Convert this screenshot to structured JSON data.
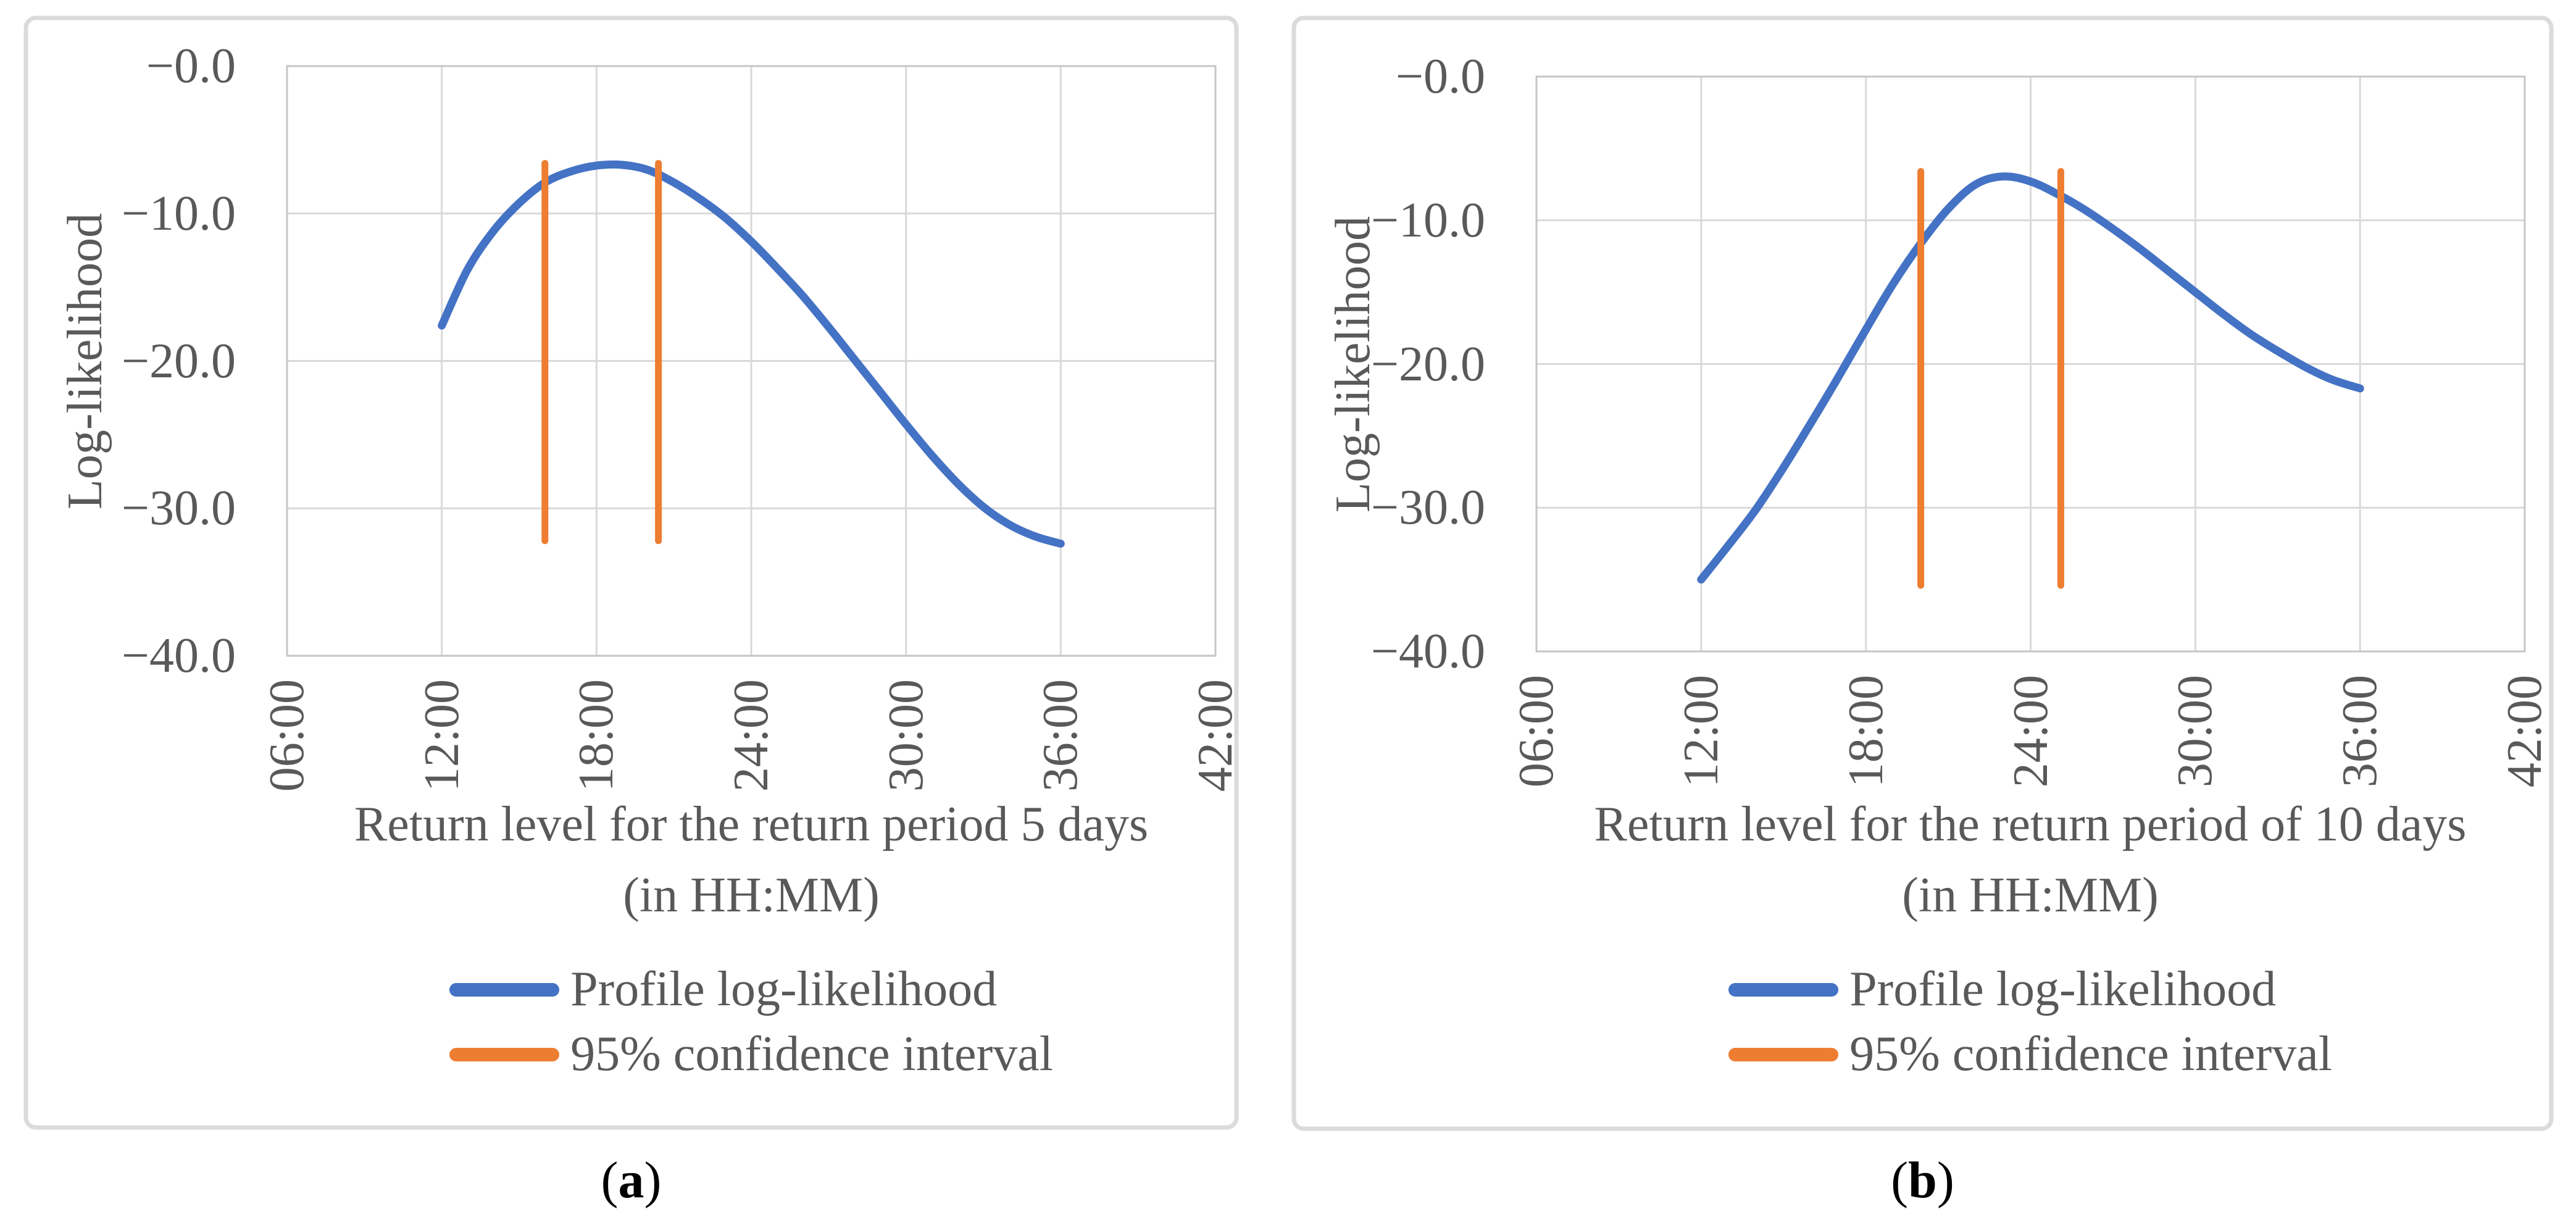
{
  "colors": {
    "series_blue": "#4472C4",
    "series_orange": "#ED7D31",
    "gridline": "#D9D9D9",
    "plot_border": "#C6C6C6",
    "axis_text": "#595959",
    "chart_border": "#DBDBDB",
    "background": "#FFFFFF"
  },
  "captions": [
    {
      "open": "(",
      "letter": "a",
      "close": ")"
    },
    {
      "open": "(",
      "letter": "b",
      "close": ")"
    }
  ],
  "chart_data": [
    {
      "type": "line",
      "title": "",
      "ylabel": "Log-likelihood",
      "xlabel_lines": [
        "Return level for the return period 5 days",
        "(in HH:MM)"
      ],
      "x_tick_labels": [
        "06:00",
        "12:00",
        "18:00",
        "24:00",
        "30:00",
        "36:00",
        "42:00"
      ],
      "x_tick_hours": [
        6,
        12,
        18,
        24,
        30,
        36,
        42
      ],
      "y_tick_labels": [
        "−0.0",
        "−10.0",
        "−20.0",
        "−30.0",
        "−40.0"
      ],
      "y_tick_values": [
        0,
        -10,
        -20,
        -30,
        -40
      ],
      "xlim_hours": [
        6,
        42
      ],
      "ylim": [
        -40,
        0
      ],
      "grid": true,
      "legend_position": "bottom",
      "series": [
        {
          "name": "Profile log-likelihood",
          "type": "smooth-line",
          "color": "#4472C4",
          "points_hours_loglik": [
            [
              12,
              -17.6
            ],
            [
              13,
              -13.8
            ],
            [
              14,
              -11.2
            ],
            [
              15,
              -9.3
            ],
            [
              16,
              -7.9
            ],
            [
              17,
              -7.15
            ],
            [
              18,
              -6.75
            ],
            [
              19,
              -6.7
            ],
            [
              20,
              -7.05
            ],
            [
              21,
              -7.9
            ],
            [
              22,
              -9.0
            ],
            [
              23,
              -10.3
            ],
            [
              24,
              -11.9
            ],
            [
              25,
              -13.7
            ],
            [
              26,
              -15.6
            ],
            [
              27,
              -17.7
            ],
            [
              28,
              -19.9
            ],
            [
              29,
              -22.1
            ],
            [
              30,
              -24.3
            ],
            [
              31,
              -26.4
            ],
            [
              32,
              -28.3
            ],
            [
              33,
              -29.9
            ],
            [
              34,
              -31.1
            ],
            [
              35,
              -31.9
            ],
            [
              36,
              -32.4
            ]
          ]
        },
        {
          "name": "95% confidence interval",
          "type": "vertical-lines",
          "color": "#ED7D31",
          "x_hours": [
            16.0,
            20.4
          ],
          "y_span": [
            -32.2,
            -6.6
          ]
        }
      ]
    },
    {
      "type": "line",
      "title": "",
      "ylabel": "Log-likelihood",
      "xlabel_lines": [
        "Return level for the return period of 10 days",
        "(in HH:MM)"
      ],
      "x_tick_labels": [
        "06:00",
        "12:00",
        "18:00",
        "24:00",
        "30:00",
        "36:00",
        "42:00"
      ],
      "x_tick_hours": [
        6,
        12,
        18,
        24,
        30,
        36,
        42
      ],
      "y_tick_labels": [
        "−0.0",
        "−10.0",
        "−20.0",
        "−30.0",
        "−40.0"
      ],
      "y_tick_values": [
        0,
        -10,
        -20,
        -30,
        -40
      ],
      "xlim_hours": [
        6,
        42
      ],
      "ylim": [
        -40,
        0
      ],
      "grid": true,
      "legend_position": "bottom",
      "series": [
        {
          "name": "Profile log-likelihood",
          "type": "smooth-line",
          "color": "#4472C4",
          "points_hours_loglik": [
            [
              12,
              -35.0
            ],
            [
              13,
              -32.6
            ],
            [
              14,
              -30.1
            ],
            [
              15,
              -27.2
            ],
            [
              16,
              -24.1
            ],
            [
              17,
              -20.9
            ],
            [
              18,
              -17.6
            ],
            [
              19,
              -14.4
            ],
            [
              20,
              -11.6
            ],
            [
              21,
              -9.2
            ],
            [
              22,
              -7.5
            ],
            [
              23,
              -6.95
            ],
            [
              24,
              -7.3
            ],
            [
              25,
              -8.2
            ],
            [
              26,
              -9.3
            ],
            [
              27,
              -10.6
            ],
            [
              28,
              -12.0
            ],
            [
              29,
              -13.5
            ],
            [
              30,
              -15.0
            ],
            [
              31,
              -16.5
            ],
            [
              32,
              -17.9
            ],
            [
              33,
              -19.1
            ],
            [
              34,
              -20.2
            ],
            [
              35,
              -21.1
            ],
            [
              36,
              -21.7
            ]
          ]
        },
        {
          "name": "95% confidence interval",
          "type": "vertical-lines",
          "color": "#ED7D31",
          "x_hours": [
            20.0,
            25.1
          ],
          "y_span": [
            -35.4,
            -6.6
          ]
        }
      ]
    }
  ]
}
